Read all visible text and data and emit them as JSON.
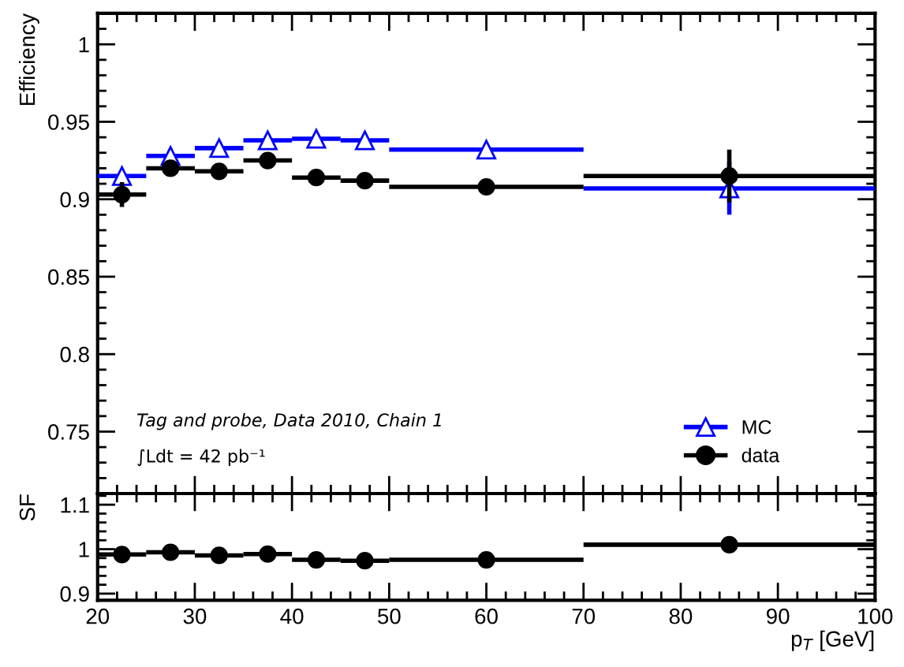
{
  "chart_data": [
    {
      "type": "scatter",
      "ylabel": "Efficiency",
      "x": [
        22.5,
        27.5,
        32.5,
        37.5,
        42.5,
        47.5,
        60,
        85
      ],
      "series": [
        {
          "name": "MC",
          "color": "#0000ff",
          "marker": "triangle",
          "values": [
            0.915,
            0.928,
            0.933,
            0.938,
            0.939,
            0.938,
            0.932,
            0.907
          ],
          "errors": [
            0.004,
            0.002,
            0.002,
            0.002,
            0.002,
            0.002,
            0.002,
            0.017
          ],
          "xerrors": [
            2.5,
            2.5,
            2.5,
            2.5,
            2.5,
            2.5,
            10,
            15
          ]
        },
        {
          "name": "data",
          "color": "#000000",
          "marker": "circle",
          "values": [
            0.903,
            0.92,
            0.918,
            0.925,
            0.914,
            0.912,
            0.908,
            0.915
          ],
          "errors": [
            0.008,
            0.004,
            0.002,
            0.002,
            0.002,
            0.002,
            0.003,
            0.017
          ],
          "xerrors": [
            2.5,
            2.5,
            2.5,
            2.5,
            2.5,
            2.5,
            10,
            15
          ]
        }
      ],
      "xlim": [
        20,
        100
      ],
      "ylim": [
        0.71,
        1.02
      ],
      "yticks": [
        0.75,
        0.8,
        0.85,
        0.9,
        0.95,
        1
      ],
      "xticks": [
        20,
        30,
        40,
        50,
        60,
        70,
        80,
        90,
        100
      ],
      "tick_labels": "y",
      "legend": "bottom right",
      "grid": false,
      "annotations": [
        "Tag and probe, Data 2010, Chain 1",
        "∫Ldt = 42 pb⁻¹"
      ]
    },
    {
      "type": "scatter",
      "ylabel": "SF",
      "xlabel": "p$_{T}$ [GeV]",
      "x": [
        22.5,
        27.5,
        32.5,
        37.5,
        42.5,
        47.5,
        60,
        85
      ],
      "series": [
        {
          "color": "#000000",
          "marker": "circle",
          "values": [
            0.988,
            0.993,
            0.986,
            0.989,
            0.976,
            0.974,
            0.976,
            1.01
          ],
          "xerrors": [
            2.5,
            2.5,
            2.5,
            2.5,
            2.5,
            2.5,
            10,
            15
          ]
        }
      ],
      "xlim": [
        20,
        100
      ],
      "ylim": [
        0.885,
        1.125
      ],
      "yticks": [
        0.9,
        1,
        1.1
      ],
      "xticks": [
        20,
        30,
        40,
        50,
        60,
        70,
        80,
        90,
        100
      ],
      "grid": false
    }
  ]
}
